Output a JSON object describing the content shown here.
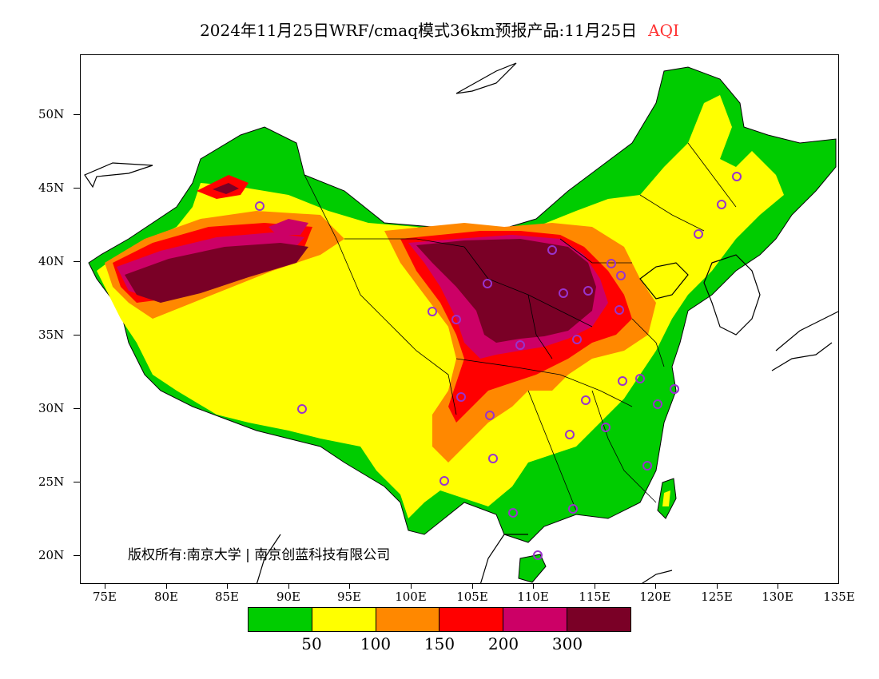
{
  "title": {
    "main": "2024年11月25日WRF/cmaq模式36km预报产品:11月25日",
    "variable": "AQI",
    "variable_color": "#ff3333"
  },
  "axes": {
    "lat_labels": [
      "50N",
      "45N",
      "40N",
      "35N",
      "30N",
      "25N",
      "20N"
    ],
    "lon_labels": [
      "75E",
      "80E",
      "85E",
      "90E",
      "95E",
      "100E",
      "105E",
      "110E",
      "115E",
      "120E",
      "125E",
      "130E",
      "135E"
    ]
  },
  "copyright": "版权所有:南京大学 | 南京创蓝科技有限公司",
  "legend": {
    "colors": [
      "#00cc00",
      "#ffff00",
      "#ff8800",
      "#ff0000",
      "#cc0066",
      "#7a0026"
    ],
    "categories": [
      "0-50",
      "50-100",
      "100-150",
      "150-200",
      "200-300",
      ">300"
    ],
    "tick_labels": [
      "50",
      "100",
      "150",
      "200",
      "300"
    ]
  },
  "map_layers": {
    "background": "#ffffff",
    "land_base_color": "#ffff00",
    "station_marker_color": "#9933cc"
  }
}
